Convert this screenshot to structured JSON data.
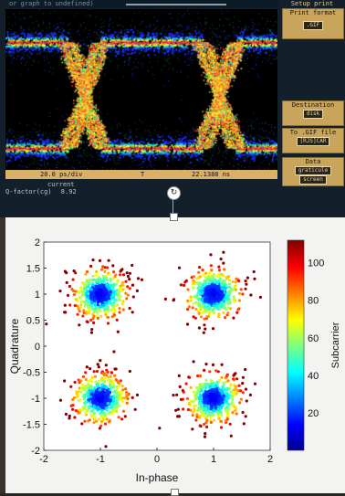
{
  "scope": {
    "title": "or graph to undefined)",
    "setup_label": "Setup print",
    "print_format_label": "Print format",
    "print_format_value": ".GIF",
    "destination_label": "Destination",
    "destination_value": "disk",
    "gif_file_label": "To .GIF file",
    "gif_file_value": "[RJS]CAR",
    "data_label": "Data",
    "graticule_btn": "graticule",
    "screen_btn": "screen",
    "timebase": "20.0 ps/div",
    "trigger_marker": "T",
    "delay": "22.1388 ns",
    "current_label": "current",
    "qfactor_label": "Q-factor(cg)",
    "qfactor_value": "8.92",
    "colors": {
      "trace_hot": "#ffb020",
      "trace_mid": "#d02070",
      "trace_cool": "#2050ff",
      "panel": "#c8a55a"
    }
  },
  "chart_data": {
    "type": "scatter",
    "x": [
      -2,
      2
    ],
    "y": [
      -2,
      2
    ],
    "xlim": [
      -2,
      2
    ],
    "ylim": [
      -2,
      2
    ],
    "xticks": [
      "-2",
      "-1",
      "0",
      "1",
      "2"
    ],
    "yticks": [
      "2",
      "1.5",
      "1",
      "0.5",
      "0",
      "-0.5",
      "-1",
      "-1.5",
      "-2"
    ],
    "xlabel": "In-phase",
    "ylabel": "Quadrature",
    "clusters": [
      {
        "cx": -1,
        "cy": 1
      },
      {
        "cx": 1,
        "cy": 1
      },
      {
        "cx": -1,
        "cy": -1
      },
      {
        "cx": 1,
        "cy": -1
      }
    ],
    "colorbar": {
      "label": "Subcarrier",
      "ticks": [
        "100",
        "80",
        "60",
        "40",
        "20"
      ],
      "min": 0,
      "max": 112
    },
    "grid": false
  }
}
